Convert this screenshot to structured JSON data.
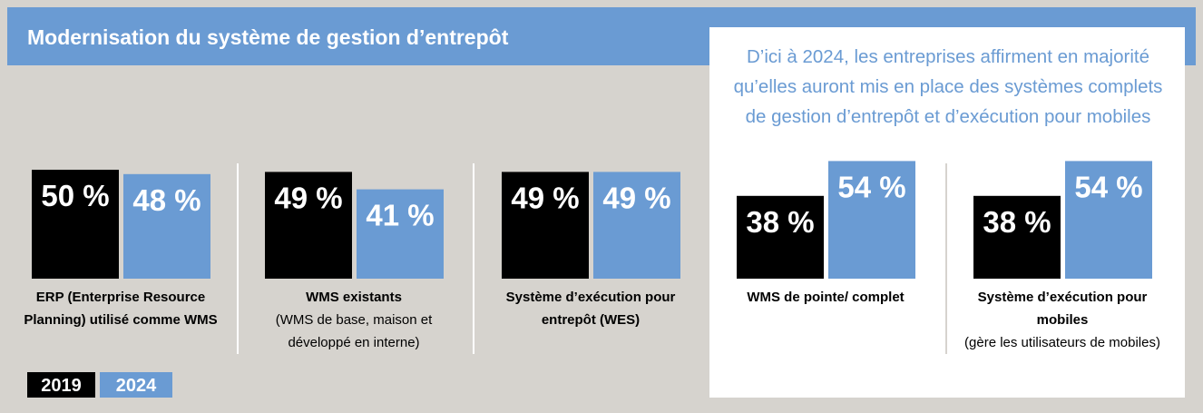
{
  "chart_data": {
    "type": "bar",
    "title": "Modernisation du système de gestion d’entrepôt",
    "annotation": "D’ici à 2024, les entreprises affirment en majorité qu’elles auront mis en place des systèmes complets de gestion d’entrepôt et d’exécution pour mobiles",
    "categories": [
      "ERP (Enterprise Resource Planning) utilisé comme WMS",
      "WMS existants",
      "Système d’exécution pour entrepôt (WES)",
      "WMS de pointe/ complet",
      "Système d’exécution pour mobiles"
    ],
    "category_notes": [
      null,
      "(WMS de base, maison et développé en interne)",
      null,
      null,
      "(gère les utilisateurs de mobiles)"
    ],
    "series": [
      {
        "name": "2019",
        "color": "#000000",
        "values": [
          50,
          49,
          49,
          38,
          38
        ],
        "value_labels": [
          "50 %",
          "49 %",
          "49 %",
          "38 %",
          "38 %"
        ]
      },
      {
        "name": "2024",
        "color": "#6a9bd3",
        "values": [
          48,
          41,
          49,
          54,
          54
        ],
        "value_labels": [
          "48 %",
          "41 %",
          "49 %",
          "54 %",
          "54 %"
        ]
      }
    ]
  }
}
